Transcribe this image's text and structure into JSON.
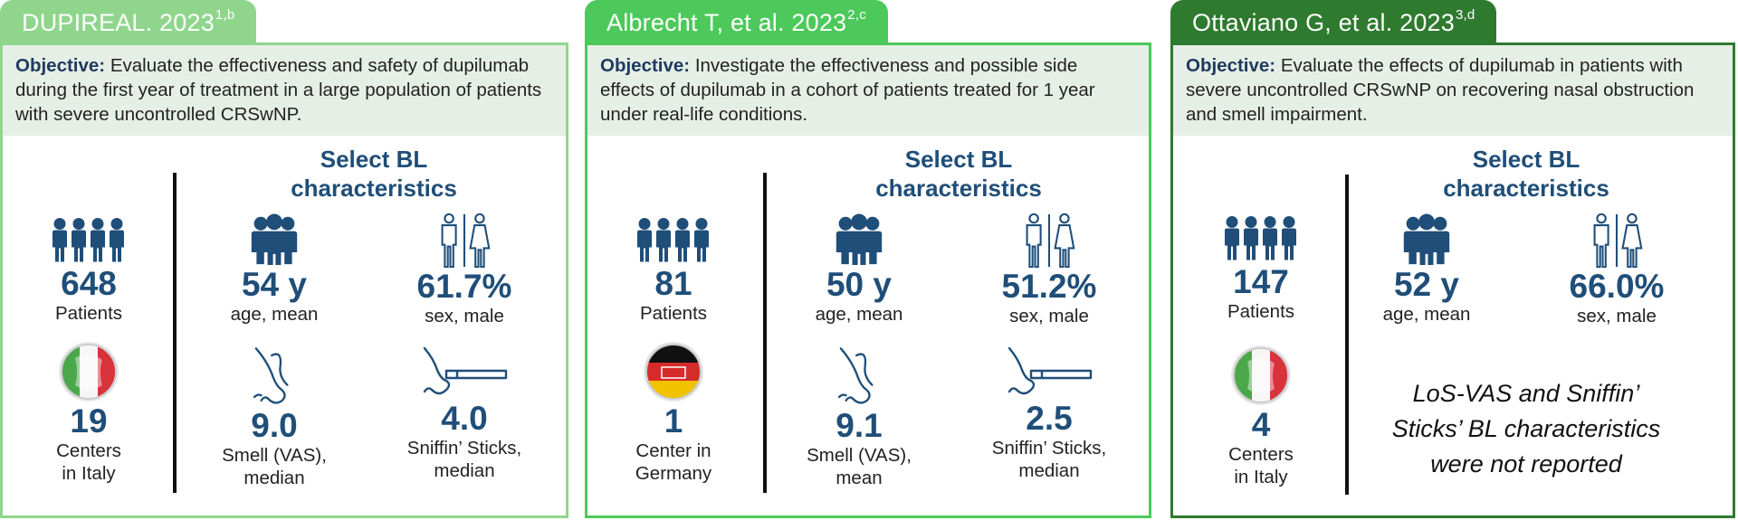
{
  "colors": {
    "dark_blue": "#1f4e79",
    "light_green": "#8fd68c",
    "green": "#4cc95a",
    "dark_green": "#2e7a2e"
  },
  "studies": [
    {
      "tab_title": "DUPIREAL. 2023",
      "tab_sup": "1,b",
      "objective_label": "Objective:",
      "objective_text": "Evaluate the effectiveness and safety of dupilumab during the first year of treatment in a large population of patients with severe uncontrolled CRSwNP.",
      "patients_value": "648",
      "patients_label": "Patients",
      "flag": "italy-flag-icon",
      "centers_value": "19",
      "centers_label_1": "Centers",
      "centers_label_2": "in Italy",
      "bl_heading_1": "Select BL",
      "bl_heading_2": "characteristics",
      "age_value": "54 y",
      "age_label": "age, mean",
      "sex_value": "61.7%",
      "sex_label": "sex, male",
      "smell_value": "9.0",
      "smell_label_1": "Smell (VAS),",
      "smell_label_2": "median",
      "sniffin_value": "4.0",
      "sniffin_label_1": "Sniffin’ Sticks,",
      "sniffin_label_2": "median"
    },
    {
      "tab_title": "Albrecht T, et al. 2023",
      "tab_sup": "2,c",
      "objective_label": "Objective:",
      "objective_text": "Investigate the effectiveness and possible side effects of dupilumab in a cohort of patients treated for 1 year under real-life conditions.",
      "patients_value": "81",
      "patients_label": "Patients",
      "flag": "germany-flag-icon",
      "centers_value": "1",
      "centers_label_1": "Center in",
      "centers_label_2": "Germany",
      "bl_heading_1": "Select BL",
      "bl_heading_2": "characteristics",
      "age_value": "50 y",
      "age_label": "age, mean",
      "sex_value": "51.2%",
      "sex_label": "sex, male",
      "smell_value": "9.1",
      "smell_label_1": "Smell (VAS),",
      "smell_label_2": "mean",
      "sniffin_value": "2.5",
      "sniffin_label_1": "Sniffin’ Sticks,",
      "sniffin_label_2": "median"
    },
    {
      "tab_title": "Ottaviano G, et al. 2023",
      "tab_sup": "3,d",
      "objective_label": "Objective:",
      "objective_text": "Evaluate the effects of dupilumab in patients with severe uncontrolled CRSwNP on recovering nasal obstruction and smell impairment.",
      "patients_value": "147",
      "patients_label": "Patients",
      "flag": "italy-flag-icon",
      "centers_value": "4",
      "centers_label_1": "Centers",
      "centers_label_2": "in Italy",
      "bl_heading_1": "Select BL",
      "bl_heading_2": "characteristics",
      "age_value": "52 y",
      "age_label": "age, mean",
      "sex_value": "66.0%",
      "sex_label": "sex, male",
      "note_1": "LoS-VAS and Sniffin’",
      "note_2": "Sticks’ BL characteristics",
      "note_3": "were not reported"
    }
  ]
}
